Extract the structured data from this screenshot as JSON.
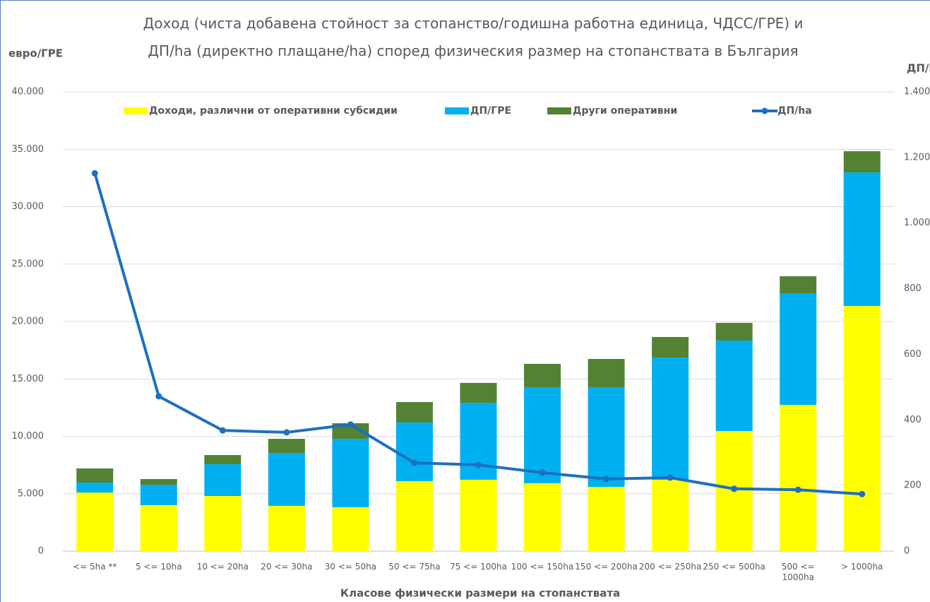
{
  "chart_data": {
    "type": "bar",
    "title": "Доход (чиста добавена стойност за стопанство/годишна работна единица, ЧДСС/ГРЕ) и ДП/ha (директно плащане/ha) според физическия размер на стопанствата в България",
    "y_label": "евро/ГРЕ",
    "y2_label": "ДП/h",
    "x_label": "Класове физически размери на стопанствата",
    "categories": [
      "<= 5ha **",
      "5 <= 10ha",
      "10 <= 20ha",
      "20 <= 30ha",
      "30 <= 50ha",
      "50 <= 75ha",
      "75 <= 100ha",
      "100 <= 150ha",
      "150 <= 200ha",
      "200 <= 250ha",
      "250 <= 500ha",
      "500 <= 1000ha",
      "> 1000ha"
    ],
    "series": [
      {
        "name": "Доходи, различни от оперативни субсидии",
        "color": "#ffff00",
        "type": "bar",
        "values": [
          5100,
          4000,
          4800,
          3940,
          3820,
          6090,
          6220,
          5910,
          5600,
          6220,
          10460,
          12740,
          21350
        ]
      },
      {
        "name": "ДП/ГРЕ",
        "color": "#00b0f0",
        "type": "bar",
        "values": [
          870,
          1780,
          2770,
          4610,
          5960,
          5110,
          6700,
          8370,
          8680,
          10640,
          7880,
          9720,
          11630
        ]
      },
      {
        "name": "Други оперативни",
        "color": "#548235",
        "type": "bar",
        "values": [
          1230,
          500,
          800,
          1230,
          1360,
          1780,
          1730,
          2030,
          2460,
          1790,
          1540,
          1480,
          1850
        ]
      },
      {
        "name": "ДП/ha",
        "color": "#1f6fbf",
        "type": "line",
        "axis": "y2",
        "values": [
          1152,
          472,
          368,
          362,
          386,
          269,
          263,
          239,
          220,
          224,
          190,
          187,
          174
        ]
      }
    ],
    "ylim": [
      0,
      40000
    ],
    "yticks": [
      0,
      {
        "value": 5000,
        "label": "5.000"
      },
      {
        "value": 10000,
        "label": "10.000"
      },
      {
        "value": 15000,
        "label": "15.000"
      },
      {
        "value": 20000,
        "label": "20.000"
      },
      {
        "value": 25000,
        "label": "25.000"
      },
      {
        "value": 30000,
        "label": "30.000"
      },
      {
        "value": 35000,
        "label": "35.000"
      },
      {
        "value": 40000,
        "label": "40.000"
      }
    ],
    "y2lim": [
      0,
      1400
    ],
    "y2ticks": [
      0,
      200,
      400,
      600,
      800,
      {
        "value": 1000,
        "label": "1.000"
      },
      {
        "value": 1200,
        "label": "1.200"
      },
      {
        "value": 1400,
        "label": "1.400"
      }
    ],
    "stacked": true,
    "grid": true
  }
}
